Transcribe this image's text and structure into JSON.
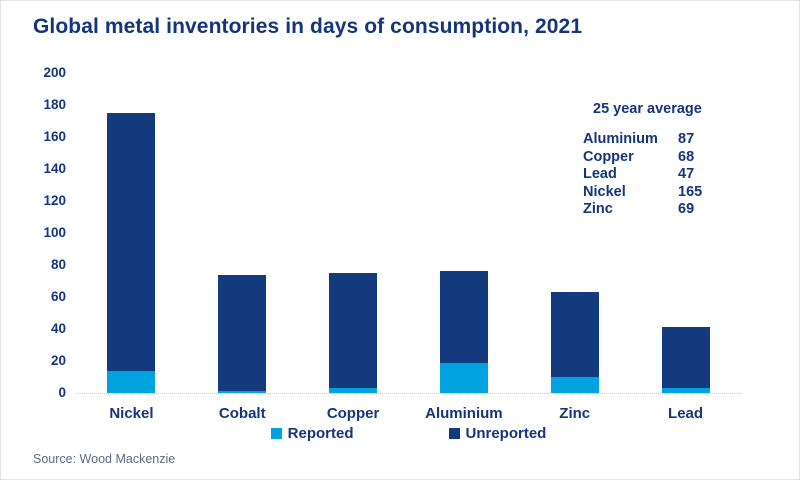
{
  "title": "Global metal inventories in days of consumption, 2021",
  "source": "Source: Wood Mackenzie",
  "legend": {
    "reported": "Reported",
    "unreported": "Unreported"
  },
  "avg_table": {
    "header": "25 year average",
    "rows": [
      {
        "metal": "Aluminium",
        "value": "87"
      },
      {
        "metal": "Copper",
        "value": "68"
      },
      {
        "metal": "Lead",
        "value": "47"
      },
      {
        "metal": "Nickel",
        "value": "165"
      },
      {
        "metal": "Zinc",
        "value": "69"
      }
    ]
  },
  "colors": {
    "reported": "#00a3e0",
    "unreported": "#123a7c",
    "text": "#14357d",
    "source_text": "#5c6b85",
    "axis_line": "#c9cdd4"
  },
  "chart_data": {
    "type": "bar",
    "stacked": true,
    "title": "Global metal inventories in days of consumption, 2021",
    "categories": [
      "Nickel",
      "Cobalt",
      "Copper",
      "Aluminium",
      "Zinc",
      "Lead"
    ],
    "series": [
      {
        "name": "Reported",
        "color": "#00a3e0",
        "values": [
          14,
          1,
          3,
          19,
          10,
          3
        ]
      },
      {
        "name": "Unreported",
        "color": "#123a7c",
        "values": [
          161,
          73,
          72,
          57,
          53,
          38
        ]
      }
    ],
    "totals": [
      175,
      74,
      75,
      76,
      63,
      41
    ],
    "xlabel": "",
    "ylabel": "",
    "ylim": [
      0,
      200
    ],
    "yticks": [
      0,
      20,
      40,
      60,
      80,
      100,
      120,
      140,
      160,
      180,
      200
    ],
    "grid": false,
    "legend_position": "bottom"
  }
}
